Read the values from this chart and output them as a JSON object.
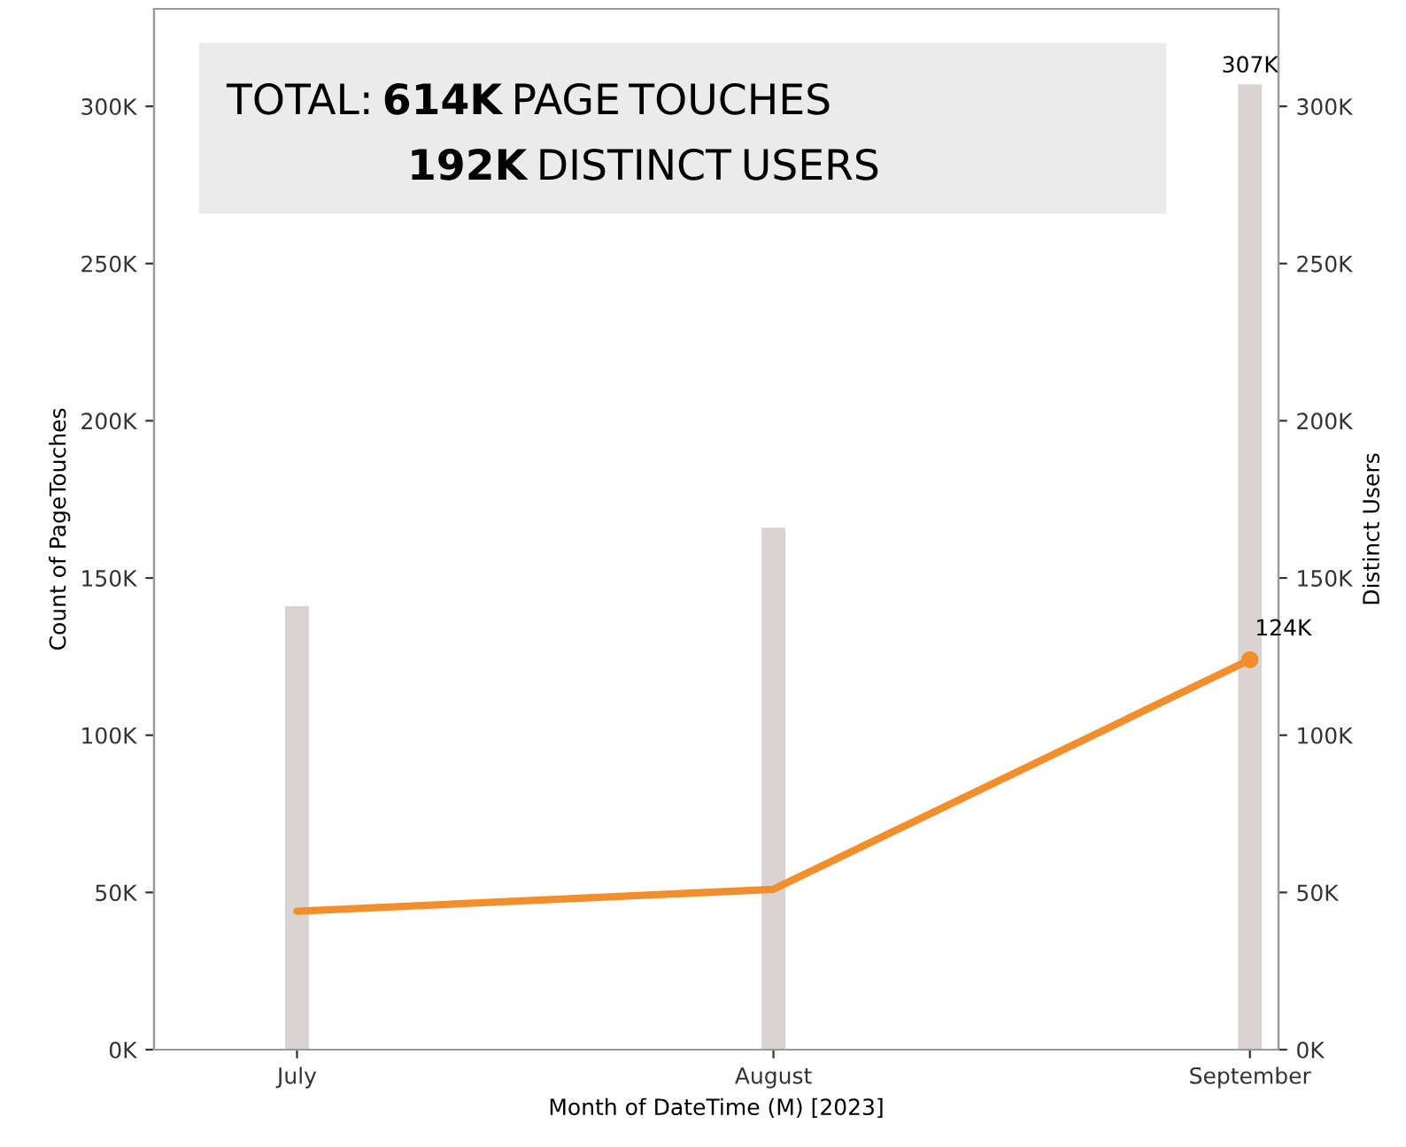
{
  "chart_data": {
    "type": "bar",
    "xlabel": "Month of DateTime (M) [2023]",
    "ylabel": "Count of PageTouches",
    "y2label": "Distinct Users",
    "categories": [
      "July",
      "August",
      "September"
    ],
    "series": [
      {
        "color": "#d9d4d3",
        "values": [
          141000,
          166000,
          307000
        ],
        "value_labels": [
          null,
          null,
          "307K"
        ]
      },
      {
        "type": "line",
        "axis": "y2",
        "color": "#f28e2b",
        "values": [
          44000,
          51000,
          124000
        ],
        "value_labels": [
          null,
          null,
          "124K"
        ]
      }
    ],
    "ylim": [
      0,
      331000
    ],
    "y2lim": [
      0,
      331000
    ],
    "yticks": [
      {
        "value": 0,
        "label": "0K"
      },
      {
        "value": 50000,
        "label": "50K"
      },
      {
        "value": 100000,
        "label": "100K"
      },
      {
        "value": 150000,
        "label": "150K"
      },
      {
        "value": 200000,
        "label": "200K"
      },
      {
        "value": 250000,
        "label": "250K"
      },
      {
        "value": 300000,
        "label": "300K"
      }
    ],
    "y2ticks": [
      {
        "value": 0,
        "label": "0K"
      },
      {
        "value": 50000,
        "label": "50K"
      },
      {
        "value": 100000,
        "label": "100K"
      },
      {
        "value": 150000,
        "label": "150K"
      },
      {
        "value": 200000,
        "label": "200K"
      },
      {
        "value": 250000,
        "label": "250K"
      },
      {
        "value": 300000,
        "label": "300K"
      }
    ],
    "annotations": [
      "TOTAL: 614K PAGE TOUCHES",
      "192K DISTINCT USERS"
    ],
    "grid": false,
    "legend": false
  }
}
